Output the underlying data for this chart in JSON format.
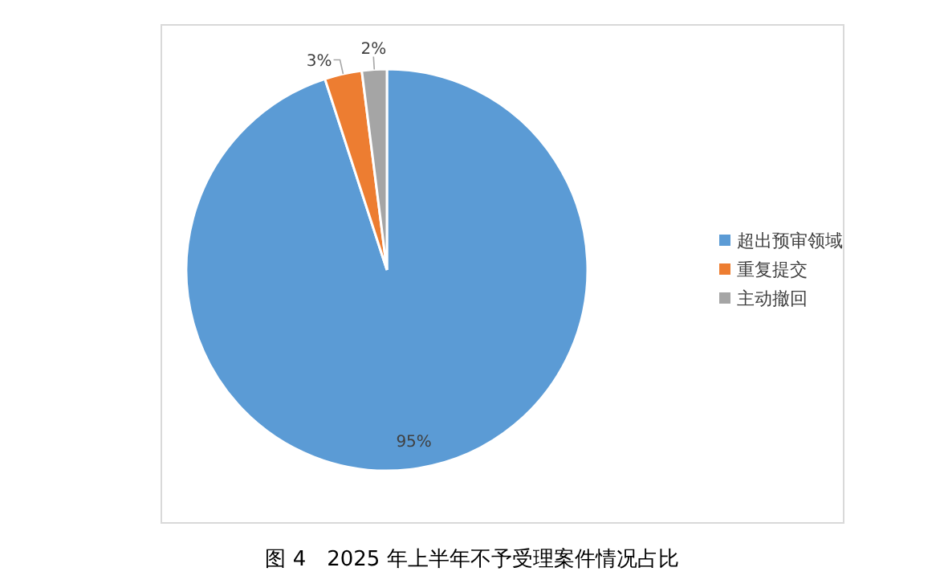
{
  "chart_data": {
    "type": "pie",
    "title": "图 4　2025 年上半年不予受理案件情况占比",
    "categories": [
      "超出预审领域",
      "重复提交",
      "主动撤回"
    ],
    "values": [
      95,
      3,
      2
    ],
    "colors": [
      "#5b9bd5",
      "#ed7d31",
      "#a5a5a5"
    ],
    "value_labels": [
      "95%",
      "3%",
      "2%"
    ],
    "legend": "right"
  }
}
